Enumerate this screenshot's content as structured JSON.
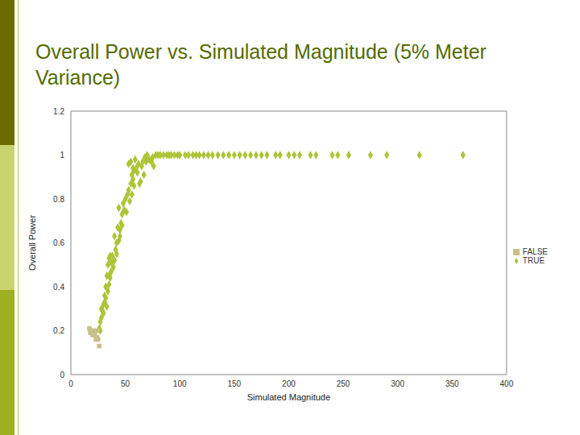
{
  "chart_data": {
    "type": "scatter",
    "title": "Overall Power vs. Simulated Magnitude (5% Meter Variance)",
    "x_label": "Simulated Magnitude",
    "y_label": "Overall Power",
    "xlim": [
      0,
      400
    ],
    "xticks": [
      0,
      50,
      100,
      150,
      200,
      250,
      300,
      350,
      400
    ],
    "ylim": [
      0,
      1.2
    ],
    "yticks": [
      0,
      0.2,
      0.4,
      0.6,
      0.8,
      1,
      1.2
    ],
    "grid": false,
    "legend": "right",
    "series": [
      {
        "name": "TRUE",
        "color": "#adc436",
        "marker": "diamond",
        "x": [
          26,
          27,
          27,
          28,
          28,
          29,
          30,
          30,
          31,
          31,
          32,
          32,
          33,
          33,
          34,
          34,
          35,
          35,
          36,
          36,
          36,
          37,
          37,
          38,
          39,
          40,
          40,
          41,
          42,
          42,
          43,
          44,
          44,
          45,
          45,
          46,
          47,
          47,
          48,
          49,
          50,
          51,
          52,
          53,
          53,
          54,
          55,
          55,
          56,
          56,
          57,
          57,
          58,
          58,
          59,
          60,
          61,
          62,
          63,
          64,
          65,
          66,
          67,
          68,
          69,
          70,
          72,
          74,
          75,
          76,
          78,
          80,
          82,
          85,
          88,
          90,
          92,
          95,
          98,
          100,
          105,
          108,
          112,
          115,
          118,
          122,
          126,
          130,
          135,
          140,
          145,
          150,
          155,
          160,
          165,
          170,
          175,
          180,
          188,
          192,
          200,
          205,
          210,
          220,
          225,
          240,
          245,
          255,
          275,
          290,
          320,
          360
        ],
        "values": [
          0.21,
          0.2,
          0.24,
          0.26,
          0.3,
          0.29,
          0.28,
          0.32,
          0.33,
          0.36,
          0.35,
          0.4,
          0.31,
          0.45,
          0.38,
          0.5,
          0.41,
          0.53,
          0.44,
          0.46,
          0.54,
          0.47,
          0.51,
          0.54,
          0.49,
          0.52,
          0.63,
          0.57,
          0.55,
          0.6,
          0.67,
          0.61,
          0.76,
          0.63,
          0.66,
          0.69,
          0.68,
          0.73,
          0.78,
          0.75,
          0.8,
          0.74,
          0.82,
          0.84,
          0.96,
          0.79,
          0.87,
          0.97,
          0.82,
          0.91,
          0.89,
          0.94,
          0.86,
          0.93,
          0.98,
          0.94,
          0.92,
          0.96,
          0.87,
          0.88,
          0.95,
          0.97,
          0.91,
          0.99,
          0.97,
          1,
          0.98,
          0.97,
          0.99,
          0.95,
          1,
          1,
          1,
          1,
          1,
          1,
          1,
          1,
          1,
          1,
          1,
          1,
          1,
          1,
          1,
          1,
          1,
          1,
          1,
          1,
          1,
          1,
          1,
          1,
          1,
          1,
          1,
          1,
          1,
          1,
          1,
          1,
          1,
          1,
          1,
          1,
          1,
          1,
          1,
          1,
          1,
          1
        ]
      },
      {
        "name": "FALSE",
        "color": "#c8c08a",
        "marker": "square",
        "x": [
          17,
          18,
          18,
          20,
          21,
          22,
          23,
          24,
          24,
          25,
          26
        ],
        "values": [
          0.21,
          0.2,
          0.19,
          0.18,
          0.2,
          0.19,
          0.16,
          0.17,
          0.2,
          0.16,
          0.13
        ]
      }
    ]
  }
}
